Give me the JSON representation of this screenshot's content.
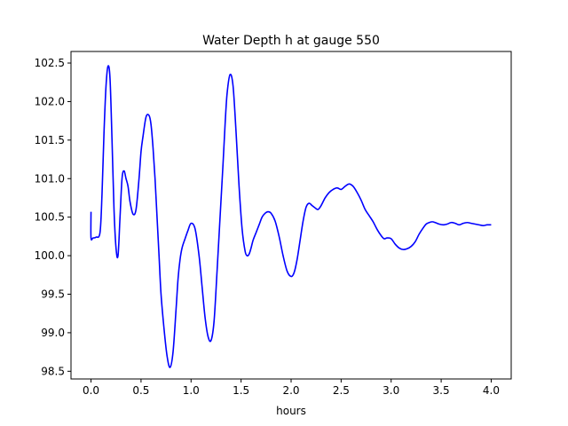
{
  "chart_data": {
    "type": "line",
    "title": "Water Depth h at gauge 550",
    "xlabel": "hours",
    "ylabel": "",
    "xlim": [
      -0.2,
      4.2
    ],
    "ylim": [
      98.4,
      102.65
    ],
    "xticks": [
      0.0,
      0.5,
      1.0,
      1.5,
      2.0,
      2.5,
      3.0,
      3.5,
      4.0
    ],
    "xtick_labels": [
      "0.0",
      "0.5",
      "1.0",
      "1.5",
      "2.0",
      "2.5",
      "3.0",
      "3.5",
      "4.0"
    ],
    "yticks": [
      98.5,
      99.0,
      99.5,
      100.0,
      100.5,
      101.0,
      101.5,
      102.0,
      102.5
    ],
    "ytick_labels": [
      "98.5",
      "99.0",
      "99.5",
      "100.0",
      "100.5",
      "101.0",
      "101.5",
      "102.0",
      "102.5"
    ],
    "grid": false,
    "legend": "none",
    "series": [
      {
        "color": "#0000ff",
        "x": [
          0.0,
          0.0,
          0.02,
          0.05,
          0.09,
          0.11,
          0.13,
          0.15,
          0.17,
          0.19,
          0.21,
          0.23,
          0.25,
          0.27,
          0.29,
          0.31,
          0.33,
          0.35,
          0.37,
          0.39,
          0.42,
          0.45,
          0.48,
          0.5,
          0.52,
          0.55,
          0.58,
          0.6,
          0.62,
          0.64,
          0.66,
          0.68,
          0.7,
          0.73,
          0.76,
          0.79,
          0.82,
          0.85,
          0.87,
          0.89,
          0.91,
          0.94,
          0.97,
          1.0,
          1.04,
          1.08,
          1.11,
          1.14,
          1.17,
          1.2,
          1.23,
          1.26,
          1.29,
          1.32,
          1.34,
          1.36,
          1.39,
          1.42,
          1.45,
          1.48,
          1.51,
          1.54,
          1.56,
          1.58,
          1.6,
          1.62,
          1.65,
          1.68,
          1.71,
          1.74,
          1.77,
          1.8,
          1.84,
          1.88,
          1.92,
          1.96,
          2.0,
          2.03,
          2.06,
          2.09,
          2.12,
          2.15,
          2.18,
          2.21,
          2.24,
          2.27,
          2.3,
          2.34,
          2.38,
          2.42,
          2.46,
          2.5,
          2.54,
          2.58,
          2.62,
          2.66,
          2.7,
          2.74,
          2.78,
          2.82,
          2.86,
          2.9,
          2.93,
          2.96,
          3.0,
          3.04,
          3.08,
          3.12,
          3.16,
          3.2,
          3.24,
          3.28,
          3.32,
          3.35,
          3.38,
          3.41,
          3.44,
          3.48,
          3.52,
          3.56,
          3.6,
          3.64,
          3.68,
          3.72,
          3.76,
          3.8,
          3.84,
          3.88,
          3.92,
          3.96,
          4.0
        ],
        "y": [
          100.57,
          100.23,
          100.23,
          100.24,
          100.3,
          100.8,
          101.6,
          102.2,
          102.46,
          102.3,
          101.5,
          100.6,
          100.1,
          100.0,
          100.5,
          101.0,
          101.1,
          101.0,
          100.9,
          100.7,
          100.54,
          100.6,
          101.0,
          101.35,
          101.55,
          101.8,
          101.82,
          101.7,
          101.4,
          101.0,
          100.5,
          100.0,
          99.5,
          99.05,
          98.7,
          98.55,
          98.75,
          99.3,
          99.7,
          99.95,
          100.1,
          100.22,
          100.33,
          100.42,
          100.35,
          100.0,
          99.6,
          99.2,
          98.95,
          98.9,
          99.15,
          99.8,
          100.5,
          101.2,
          101.7,
          102.1,
          102.35,
          102.2,
          101.6,
          100.9,
          100.35,
          100.06,
          100.0,
          100.02,
          100.1,
          100.2,
          100.3,
          100.4,
          100.5,
          100.55,
          100.57,
          100.55,
          100.45,
          100.25,
          100.0,
          99.8,
          99.73,
          99.78,
          99.95,
          100.2,
          100.45,
          100.63,
          100.68,
          100.65,
          100.62,
          100.6,
          100.65,
          100.75,
          100.82,
          100.86,
          100.88,
          100.86,
          100.9,
          100.93,
          100.9,
          100.82,
          100.72,
          100.6,
          100.52,
          100.44,
          100.34,
          100.26,
          100.22,
          100.23,
          100.22,
          100.15,
          100.1,
          100.08,
          100.09,
          100.12,
          100.18,
          100.28,
          100.36,
          100.41,
          100.43,
          100.44,
          100.43,
          100.41,
          100.4,
          100.41,
          100.43,
          100.42,
          100.4,
          100.42,
          100.43,
          100.42,
          100.41,
          100.4,
          100.39,
          100.4,
          100.4
        ]
      }
    ]
  }
}
